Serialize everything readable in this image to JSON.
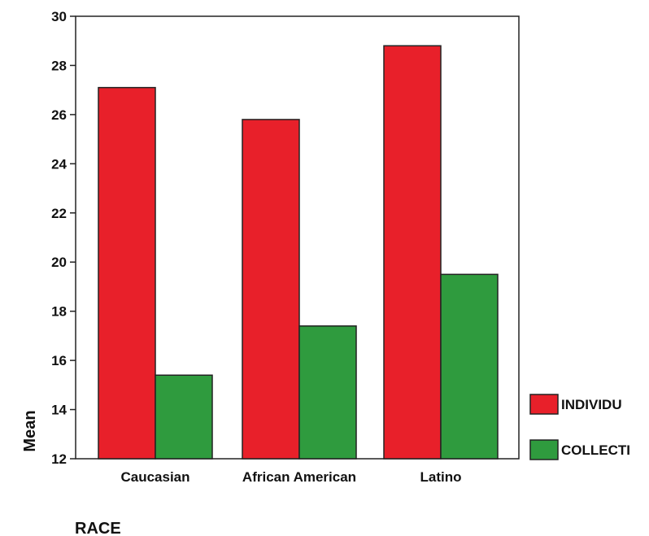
{
  "chart_data": {
    "type": "bar",
    "categories": [
      "Caucasian",
      "African American",
      "Latino"
    ],
    "series": [
      {
        "name": "INDIVIDU",
        "values": [
          27.1,
          25.8,
          28.8
        ],
        "color": "#e8202a"
      },
      {
        "name": "COLLECTI",
        "values": [
          15.4,
          17.4,
          19.5
        ],
        "color": "#2f9b3e"
      }
    ],
    "xlabel": "RACE",
    "ylabel": "Mean",
    "ylim": [
      12,
      30
    ],
    "yticks": [
      "12",
      "14",
      "16",
      "18",
      "20",
      "22",
      "24",
      "26",
      "28",
      "30"
    ],
    "grid": false,
    "legend_position": "right"
  }
}
